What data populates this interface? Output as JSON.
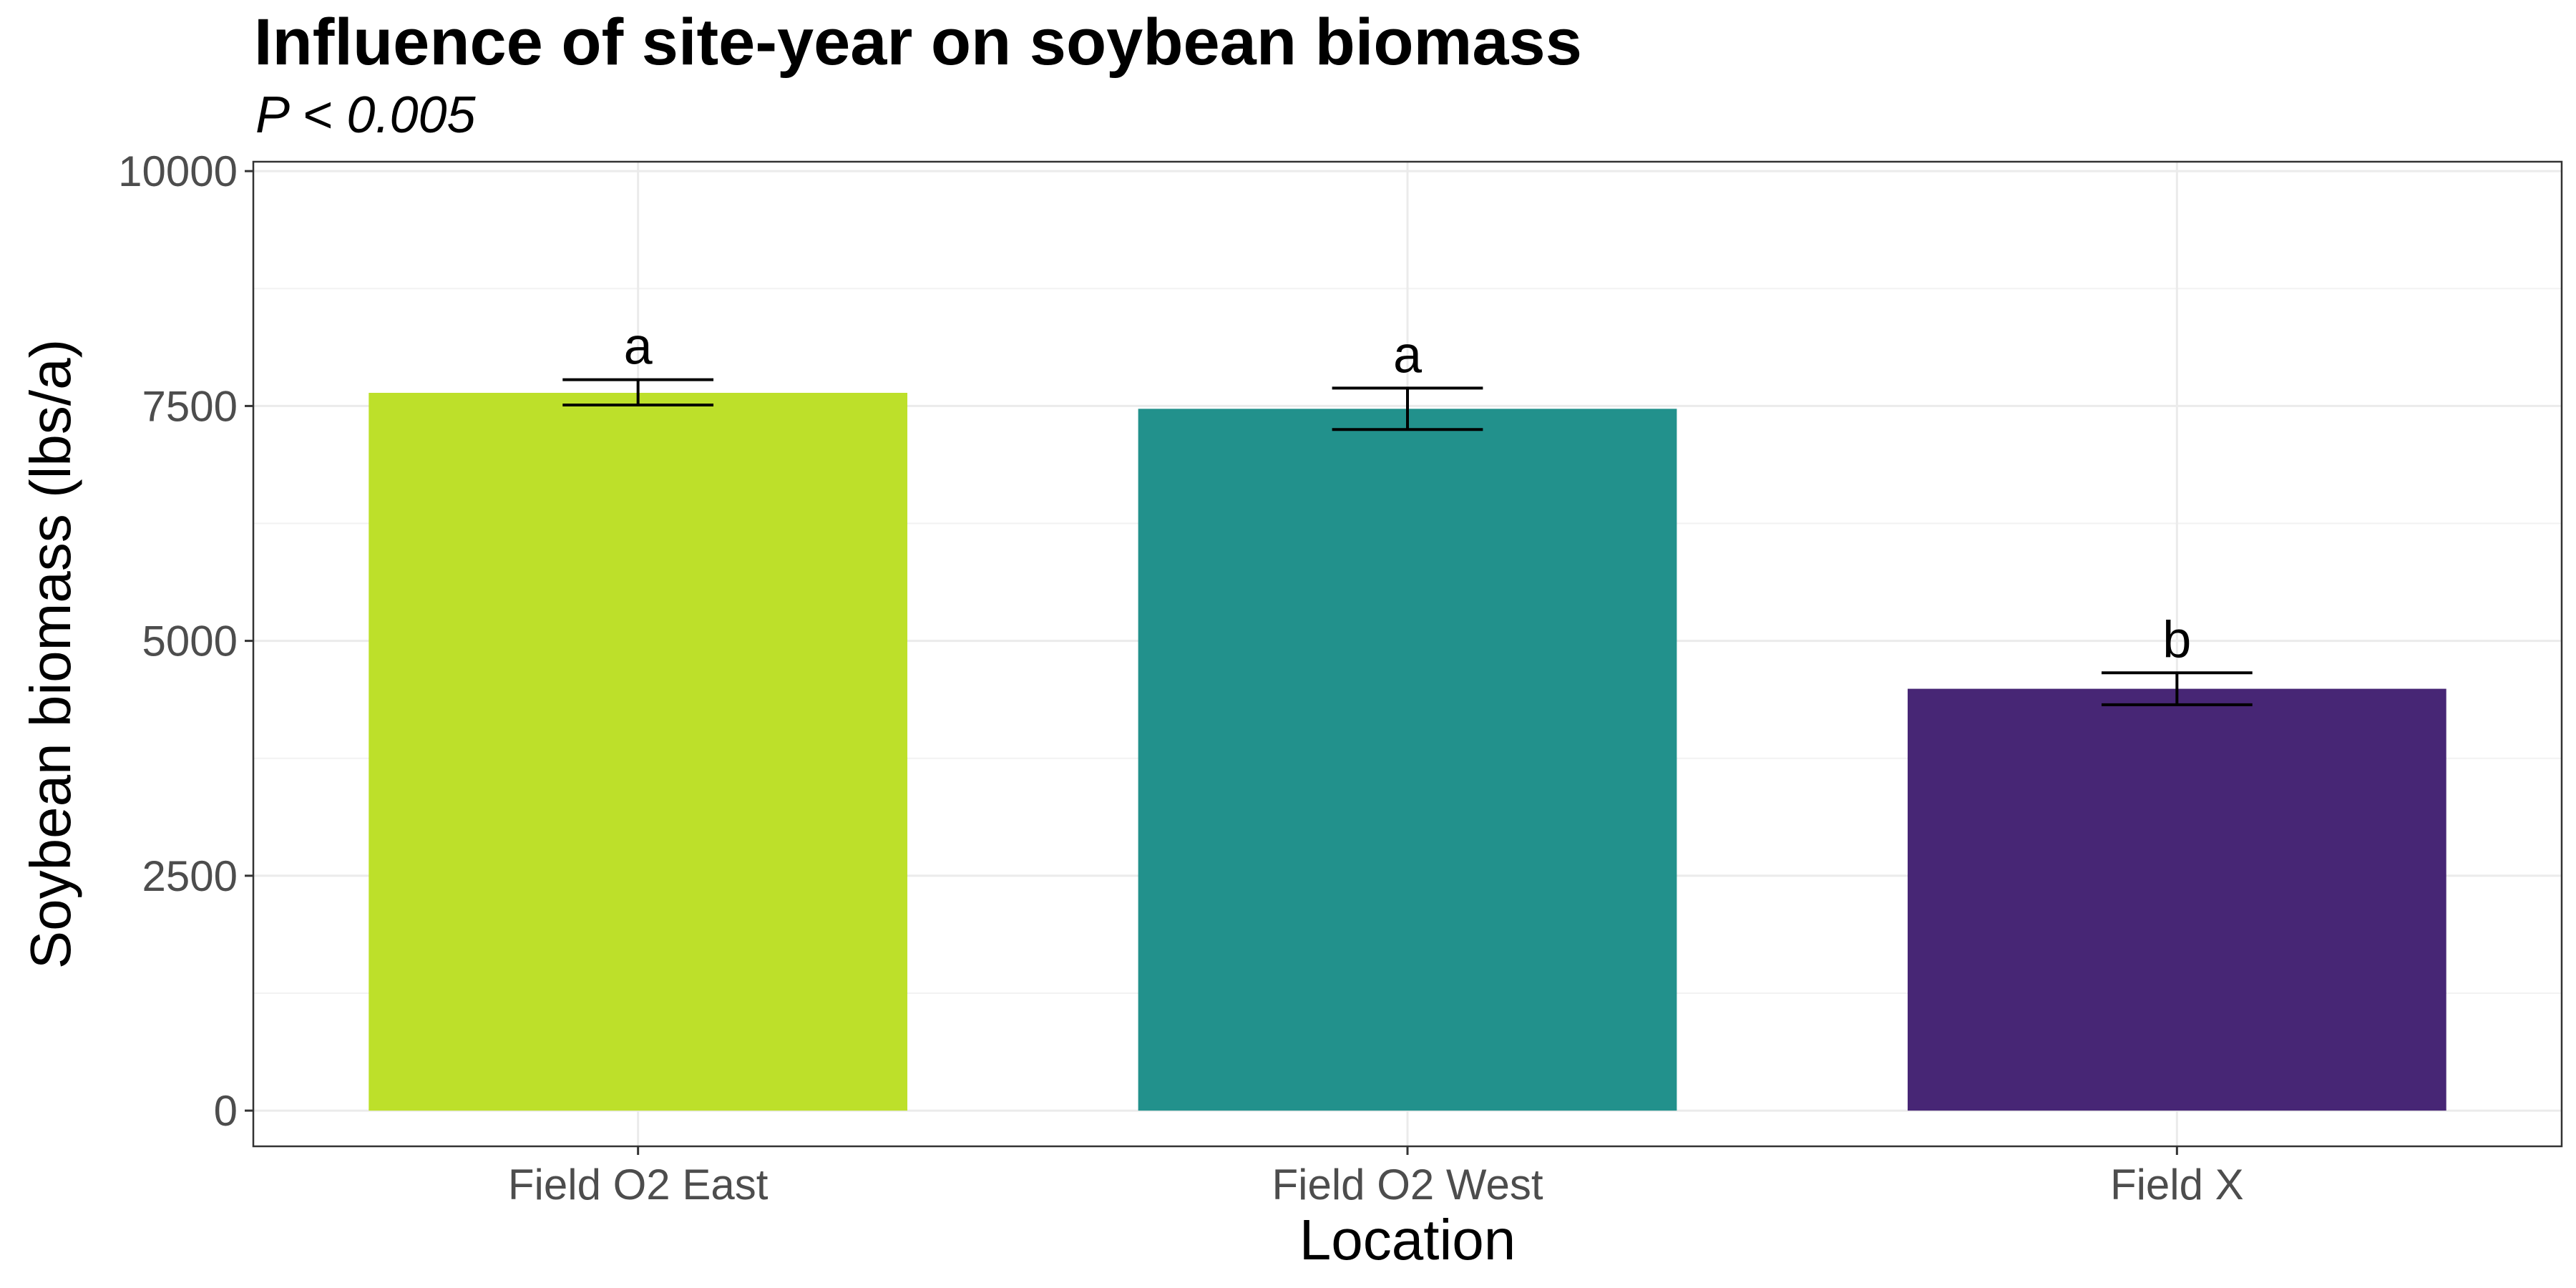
{
  "chart_data": {
    "type": "bar",
    "title": "Influence of site-year on soybean biomass",
    "subtitle": "P < 0.005",
    "xlabel": "Location",
    "ylabel": "Soybean biomass (lbs/a)",
    "categories": [
      "Field O2 East",
      "Field O2 West",
      "Field X"
    ],
    "values": [
      7640,
      7470,
      4490
    ],
    "error_low": [
      7510,
      7250,
      4320
    ],
    "error_high": [
      7780,
      7690,
      4660
    ],
    "significance_labels": [
      "a",
      "a",
      "b"
    ],
    "bar_colors": [
      "#bde02a",
      "#22918c",
      "#472675"
    ],
    "ylim": [
      -380,
      10100
    ],
    "yticks": [
      0,
      2500,
      5000,
      7500,
      10000
    ],
    "ytick_labels": [
      "0",
      "2500",
      "5000",
      "7500",
      "10000"
    ],
    "grid": true,
    "legend": "none"
  }
}
